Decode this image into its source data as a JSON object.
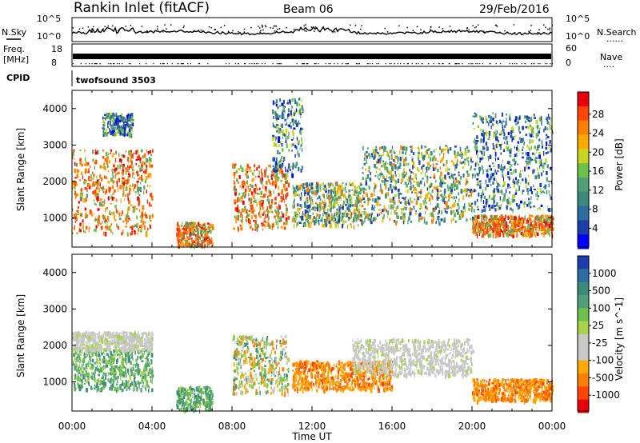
{
  "header": {
    "station": "Rankin Inlet (fitACF)",
    "beam": "Beam 06",
    "date": "29/Feb/2016"
  },
  "aux": {
    "nsky_label": "N.Sky",
    "nsearch_label": "N.Search",
    "nsearch_dots": "......",
    "log_top": "10^5",
    "log_bottom": "10^0",
    "freq_label": "Freq.",
    "freq_unit": "[MHz]",
    "freq_ticks": [
      "18",
      "8"
    ],
    "nave_label": "Nave",
    "nave_dots": "....",
    "nave_ticks": [
      "60",
      "0"
    ],
    "cpid_label": "CPID",
    "cpid_value": "twofsound 3503"
  },
  "chart_data": [
    {
      "type": "heatmap",
      "name_on_chart": "",
      "xlabel": "",
      "ylabel": "Slant Range [km]",
      "xlim": [
        0,
        24
      ],
      "ylim": [
        200,
        4500
      ],
      "xticks": [
        0,
        4,
        8,
        12,
        16,
        20,
        24
      ],
      "yticks": [
        1000,
        2000,
        3000,
        4000
      ],
      "colorbar": {
        "label": "Power [dB]",
        "tick_labels": [
          "28",
          "24",
          "20",
          "16",
          "12",
          "8",
          "4"
        ],
        "range": [
          0,
          32
        ],
        "colors_high_to_low": [
          "#e8000b",
          "#ff4500",
          "#ff7f00",
          "#ffaa00",
          "#c8d420",
          "#6fc04a",
          "#4fa079",
          "#3c8a7a",
          "#2c6ea2",
          "#1a3fa8",
          "#0000ff"
        ]
      },
      "echo_regions": [
        {
          "t": [
            0.0,
            4.0
          ],
          "range_km": [
            600,
            2900
          ],
          "level": "high"
        },
        {
          "t": [
            1.5,
            3.0
          ],
          "range_km": [
            3300,
            3900
          ],
          "level": "low"
        },
        {
          "t": [
            5.2,
            7.0
          ],
          "range_km": [
            250,
            900
          ],
          "level": "high"
        },
        {
          "t": [
            8.0,
            10.8
          ],
          "range_km": [
            700,
            2500
          ],
          "level": "high"
        },
        {
          "t": [
            10.0,
            11.5
          ],
          "range_km": [
            2200,
            4300
          ],
          "level": "low"
        },
        {
          "t": [
            11.0,
            14.5
          ],
          "range_km": [
            800,
            2000
          ],
          "level": "mid"
        },
        {
          "t": [
            14.5,
            20.0
          ],
          "range_km": [
            900,
            3000
          ],
          "level": "mid"
        },
        {
          "t": [
            20.0,
            24.0
          ],
          "range_km": [
            550,
            1100
          ],
          "level": "high"
        },
        {
          "t": [
            20.0,
            24.0
          ],
          "range_km": [
            1200,
            3900
          ],
          "level": "low"
        }
      ]
    },
    {
      "type": "heatmap",
      "name_on_chart": "",
      "xlabel": "Time UT",
      "ylabel": "Slant Range [km]",
      "xlim": [
        0,
        24
      ],
      "ylim": [
        200,
        4500
      ],
      "xticks": [
        0,
        4,
        8,
        12,
        16,
        20,
        24
      ],
      "xtick_labels": [
        "00:00",
        "04:00",
        "08:00",
        "12:00",
        "16:00",
        "20:00",
        "00:00"
      ],
      "yticks": [
        1000,
        2000,
        3000,
        4000
      ],
      "colorbar": {
        "label": "Velocity [m s^-1]",
        "tick_labels": [
          "1000",
          "500",
          "100",
          "25",
          "-25",
          "-100",
          "-500",
          "-1000"
        ],
        "colors_high_to_low": [
          "#1a3fa8",
          "#2c6ea2",
          "#3c8a7a",
          "#4fa079",
          "#6fc04a",
          "#a9d34e",
          "#c8c8c8",
          "#c8c8c8",
          "#ffaa00",
          "#ff7f00",
          "#ff4500",
          "#e8000b"
        ]
      },
      "echo_regions": [
        {
          "t": [
            0.0,
            4.0
          ],
          "range_km": [
            800,
            1900
          ],
          "level": "slow-positive"
        },
        {
          "t": [
            0.0,
            4.0
          ],
          "range_km": [
            1900,
            2400
          ],
          "level": "near-zero"
        },
        {
          "t": [
            5.2,
            7.0
          ],
          "range_km": [
            250,
            900
          ],
          "level": "slow-positive"
        },
        {
          "t": [
            8.0,
            10.8
          ],
          "range_km": [
            700,
            2300
          ],
          "level": "mixed"
        },
        {
          "t": [
            11.0,
            16.0
          ],
          "range_km": [
            800,
            1600
          ],
          "level": "negative"
        },
        {
          "t": [
            14.0,
            20.0
          ],
          "range_km": [
            1200,
            2200
          ],
          "level": "near-zero"
        },
        {
          "t": [
            20.0,
            24.0
          ],
          "range_km": [
            500,
            1100
          ],
          "level": "negative"
        }
      ]
    }
  ]
}
